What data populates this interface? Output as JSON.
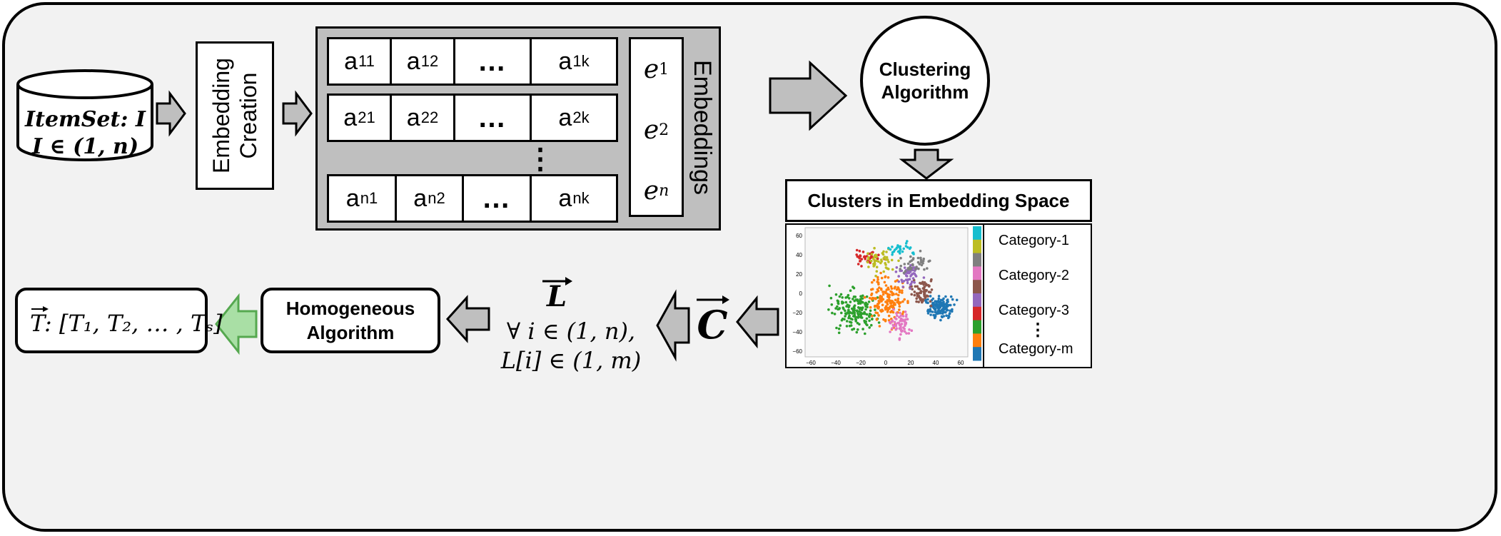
{
  "itemset": {
    "line1": "ItemSet: I",
    "line2": "I ∈ (1, n)"
  },
  "embedding_creation": {
    "line1": "Embedding",
    "line2": "Creation"
  },
  "matrix": {
    "row1": [
      "a",
      "a",
      "…",
      "a"
    ],
    "row1_subs": [
      "11",
      "12",
      "",
      "1k"
    ],
    "row2": [
      "a",
      "a",
      "…",
      "a"
    ],
    "row2_subs": [
      "21",
      "22",
      "",
      "2k"
    ],
    "rown": [
      "a",
      "a",
      "…",
      "a"
    ],
    "rown_subs": [
      "n1",
      "n2",
      "",
      "nk"
    ],
    "vdots": "⋮",
    "vector": [
      "e",
      "e",
      "e"
    ],
    "vector_subs": [
      "1",
      "2",
      "n"
    ],
    "label": "Embeddings"
  },
  "clustering": {
    "line1": "Clustering",
    "line2": "Algorithm"
  },
  "clusters_title": "Clusters in Embedding Space",
  "scatter": {
    "y_ticks": [
      "60",
      "40",
      "20",
      "0",
      "−20",
      "−40",
      "−60"
    ],
    "x_ticks": [
      "−60",
      "−40",
      "−20",
      "0",
      "20",
      "40",
      "60"
    ],
    "colorbar": [
      "#17becf",
      "#bcbd22",
      "#7f7f7f",
      "#e377c2",
      "#8c564b",
      "#9467bd",
      "#d62728",
      "#2ca02c",
      "#ff7f0e",
      "#1f77b4"
    ]
  },
  "categories": [
    "Category-1",
    "Category-2",
    "Category-3",
    "⋮",
    "Category-m"
  ],
  "c_vector": "C",
  "labels": {
    "symbol": "L",
    "line1": "∀ i ∈ (1, n),",
    "line2": "L[i] ∈ (1, m)"
  },
  "homogeneous": {
    "line1": "Homogeneous",
    "line2": "Algorithm"
  },
  "output": {
    "vector": "T",
    "list": ": [T₁, T₂, … , Tₛ]"
  },
  "colors": {
    "arrow_gray": "#bfbfbf",
    "arrow_green": "#a9dfa5",
    "panel": "#f2f2f2",
    "matrix_bg": "#bfbfbf"
  }
}
